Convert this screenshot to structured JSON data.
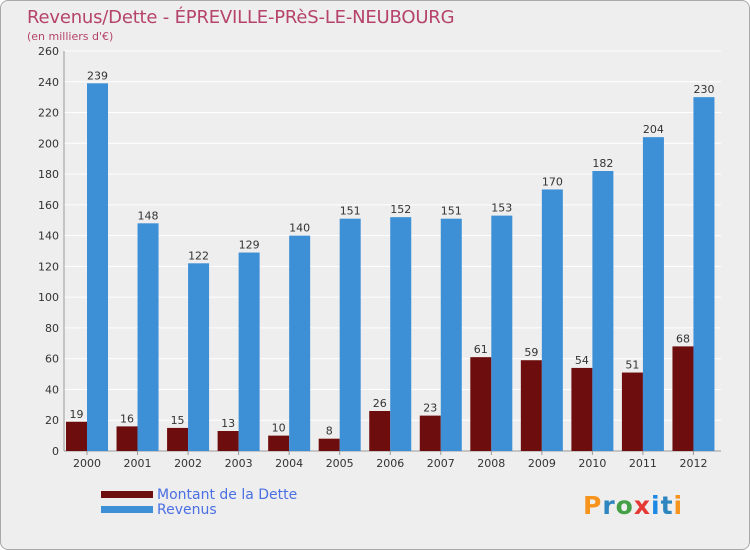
{
  "title": "Revenus/Dette - ÉPREVILLE-PRèS-LE-NEUBOURG",
  "subtitle": "(en milliers d'€)",
  "brand": {
    "text": "Proxiti",
    "letter_colors": [
      "#f7941d",
      "#2e86c1",
      "#43a047",
      "#e53935",
      "#1e88e5",
      "#2e86c1",
      "#f7941d"
    ]
  },
  "colors": {
    "background": "#eeeeee",
    "grid": "#ffffff",
    "title": "#b5436b",
    "legend_text": "#4a6fe3",
    "dette": "#6e0d0d",
    "revenus": "#3d8fd6"
  },
  "legend": [
    {
      "label": "Montant de la Dette",
      "color": "#6e0d0d"
    },
    {
      "label": "Revenus",
      "color": "#3d8fd6"
    }
  ],
  "chart_data": {
    "type": "bar",
    "title": "Revenus/Dette - ÉPREVILLE-PRèS-LE-NEUBOURG",
    "subtitle": "(en milliers d'€)",
    "categories": [
      "2000",
      "2001",
      "2002",
      "2003",
      "2004",
      "2005",
      "2006",
      "2007",
      "2008",
      "2009",
      "2010",
      "2011",
      "2012"
    ],
    "series": [
      {
        "name": "Montant de la Dette",
        "color": "#6e0d0d",
        "values": [
          19,
          16,
          15,
          13,
          10,
          8,
          26,
          23,
          61,
          59,
          54,
          51,
          68
        ]
      },
      {
        "name": "Revenus",
        "color": "#3d8fd6",
        "values": [
          239,
          148,
          122,
          129,
          140,
          151,
          152,
          151,
          153,
          170,
          182,
          204,
          230
        ]
      }
    ],
    "ylim": [
      0,
      260
    ],
    "yticks": [
      0,
      20,
      40,
      60,
      80,
      100,
      120,
      140,
      160,
      180,
      200,
      220,
      240,
      260
    ],
    "grid": true,
    "legend_position": "bottom-left"
  }
}
